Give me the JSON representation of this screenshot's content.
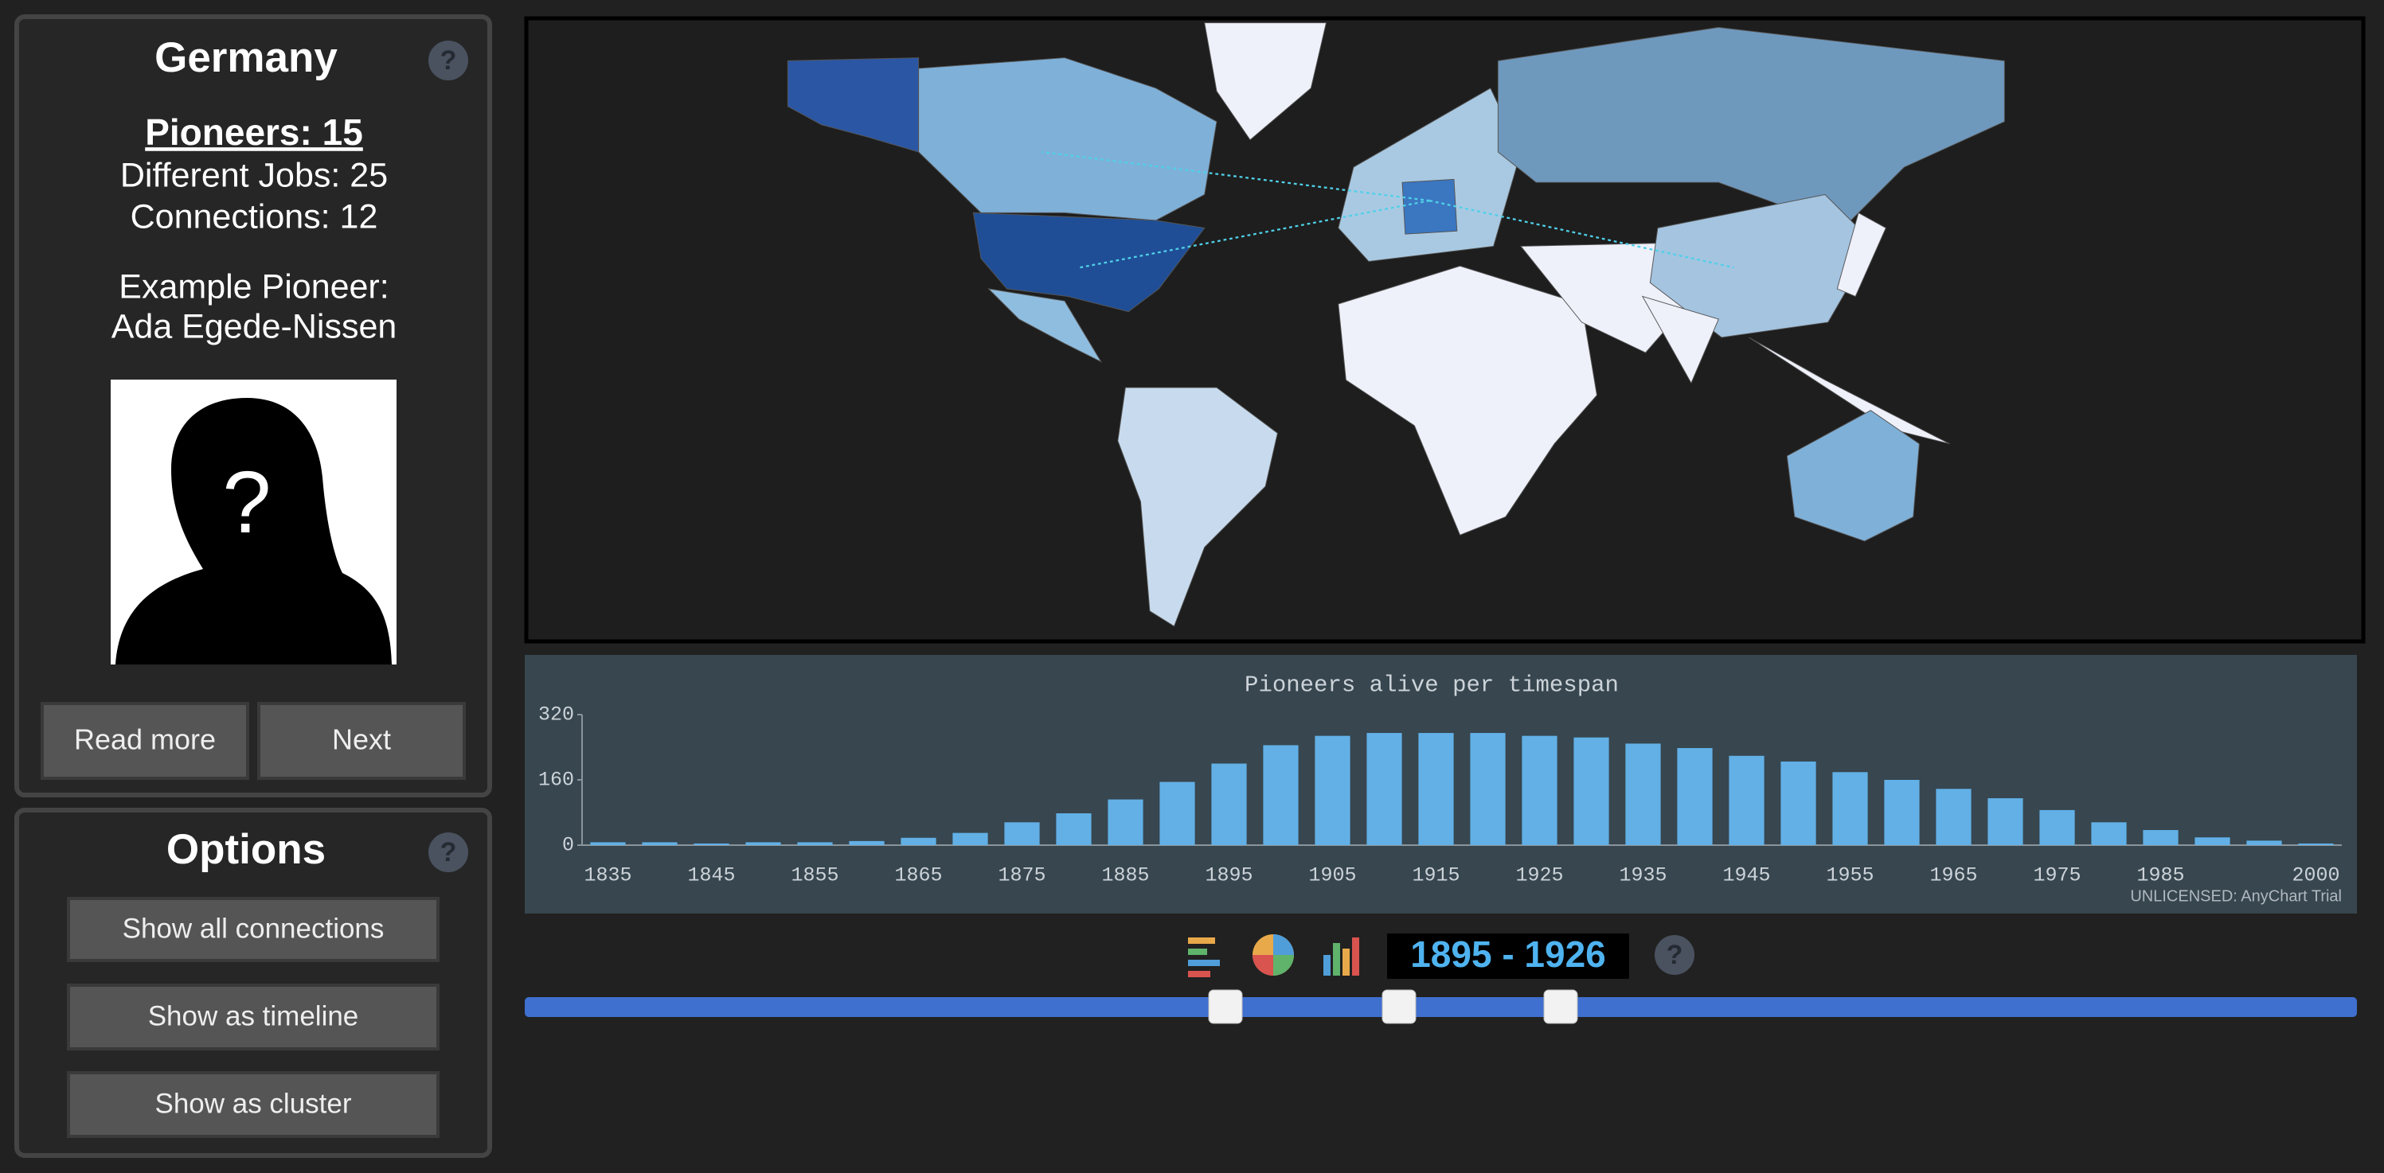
{
  "help": "?",
  "info_panel": {
    "title": "Germany",
    "pioneers": "Pioneers: 15",
    "different_jobs": "Different Jobs: 25",
    "connections": "Connections: 12",
    "example_label": "Example Pioneer:",
    "example_name": "Ada Egede-Nissen",
    "buttons": [
      "Read more",
      "Next"
    ]
  },
  "options_panel": {
    "title": "Options",
    "buttons": [
      "Show all connections",
      "Show as timeline",
      "Show as cluster"
    ]
  },
  "chart_data": {
    "type": "bar",
    "title": "Pioneers alive per timespan",
    "categories": [
      "1835",
      null,
      "1845",
      null,
      "1855",
      null,
      "1865",
      null,
      "1875",
      null,
      "1885",
      null,
      "1895",
      null,
      "1905",
      null,
      "1915",
      null,
      "1925",
      null,
      "1935",
      null,
      "1945",
      null,
      "1955",
      null,
      "1965",
      null,
      "1975",
      null,
      "1985",
      null,
      null,
      "2000"
    ],
    "values": [
      7,
      7,
      4,
      7,
      7,
      10,
      18,
      30,
      56,
      78,
      112,
      155,
      200,
      245,
      268,
      275,
      275,
      275,
      268,
      264,
      249,
      238,
      219,
      205,
      179,
      160,
      138,
      115,
      86,
      56,
      37,
      19,
      11,
      4
    ],
    "color": "#62b0e6",
    "ylim": [
      0,
      320
    ],
    "yticks": [
      0,
      160,
      320
    ],
    "grid": false,
    "watermark": "UNLICENSED: AnyChart Trial"
  },
  "timeline": {
    "range_label": "1895 - 1926"
  }
}
